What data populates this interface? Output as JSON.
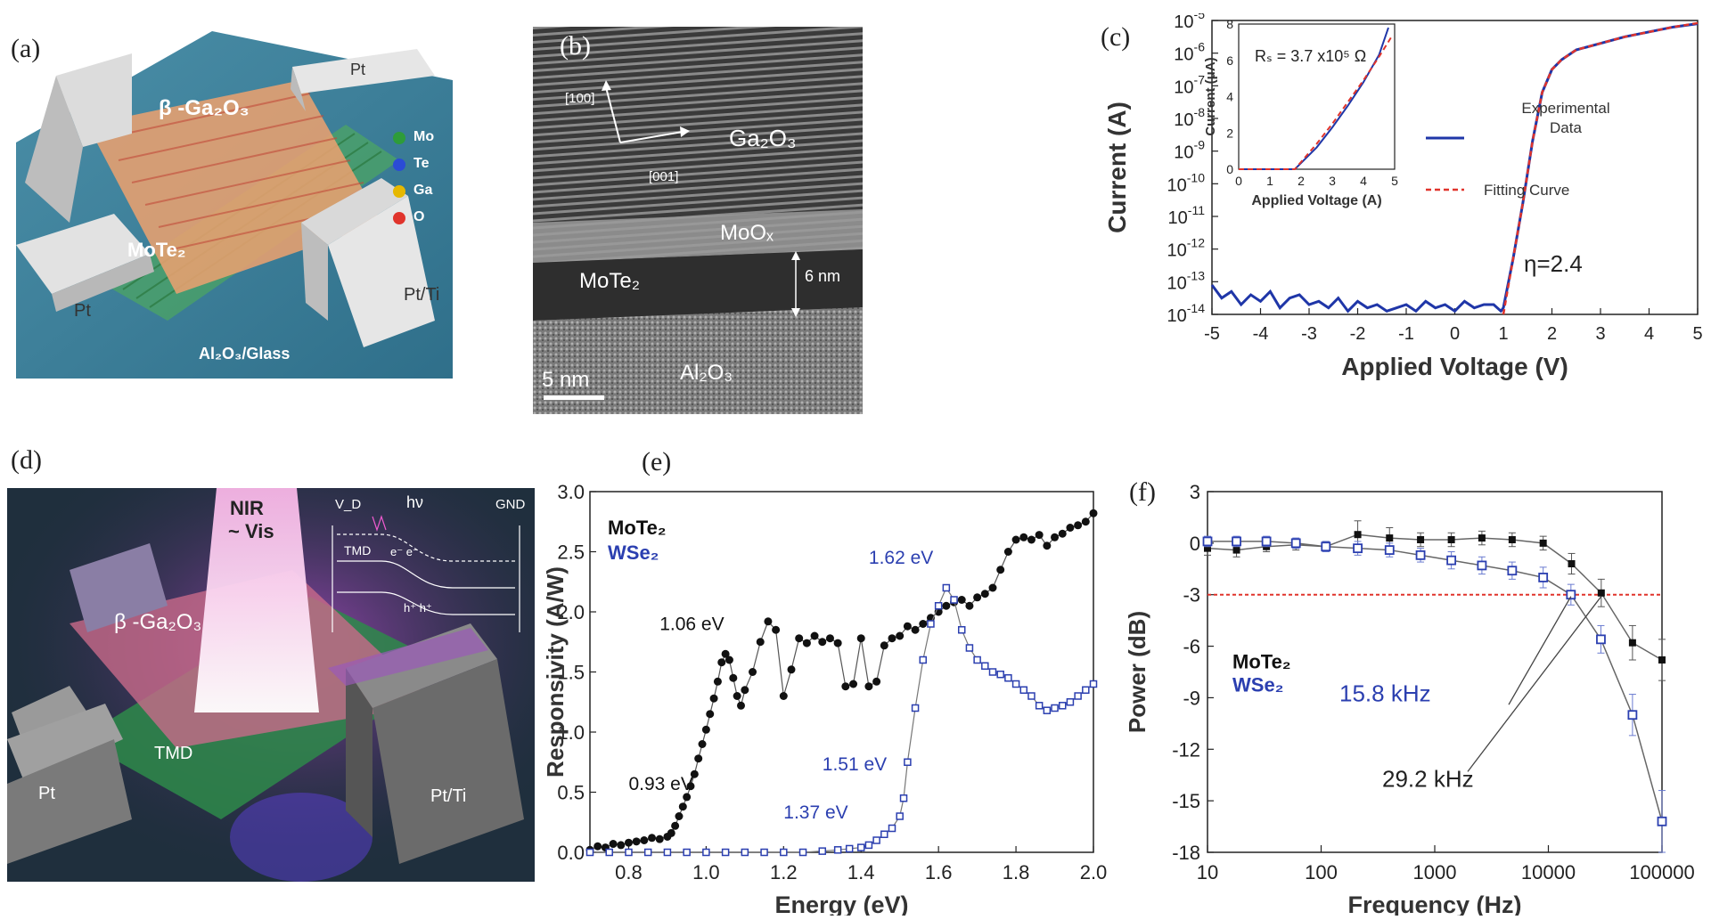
{
  "panels": {
    "a": {
      "label": "(a)",
      "layers": {
        "top": "β -Ga₂O₃",
        "middle": "MoTe₂",
        "substrate": "Al₂O₃/Glass"
      },
      "electrodes": [
        "Pt",
        "Pt",
        "Pt/Ti"
      ],
      "legend": [
        {
          "name": "Mo",
          "color": "#2e9c3a"
        },
        {
          "name": "Te",
          "color": "#2b4bd6"
        },
        {
          "name": "Ga",
          "color": "#e6b800"
        },
        {
          "name": "O",
          "color": "#e0342c"
        }
      ]
    },
    "b": {
      "label": "(b)",
      "dir1": "[100]",
      "dir2": "[001]",
      "layers": [
        "Ga₂O₃",
        "MoOₓ",
        "MoTe₂",
        "Al₂O₃"
      ],
      "thickness": "6 nm",
      "scalebar": "5 nm"
    },
    "c": {
      "label": "(c)",
      "xlabel": "Applied Voltage (V)",
      "ylabel": "Current (A)",
      "eta": "η=2.4",
      "legend": {
        "exp1": "Experimental",
        "exp2": "Data",
        "fit": "Fitting Curve"
      },
      "inset": {
        "xlabel": "Applied Voltage (A)",
        "ylabel": "Current (μA)",
        "rs": "Rₛ = 3.7 x10⁵ Ω",
        "xticks": [
          "0",
          "1",
          "2",
          "3",
          "4",
          "5"
        ],
        "yticks": [
          "0",
          "2",
          "4",
          "6",
          "8"
        ]
      }
    },
    "d": {
      "label": "(d)",
      "beam1": "NIR",
      "beam2": "~ Vis",
      "top": "β -Ga₂O₃",
      "bottom": "TMD",
      "electrodes": [
        "Pt",
        "Pt/Ti"
      ],
      "band": {
        "vd": "V_D",
        "hv": "hν",
        "gnd": "GND",
        "tmd": "TMD",
        "e": "e⁻ e⁻",
        "h": "h⁺ h⁺"
      }
    },
    "e": {
      "label": "(e)",
      "xlabel": "Energy (eV)",
      "ylabel": "Responsivity (A/W)",
      "legend": [
        "MoTe₂",
        "WSe₂"
      ],
      "annotations": [
        "0.93 eV",
        "1.06 eV",
        "1.37 eV",
        "1.51 eV",
        "1.62 eV"
      ]
    },
    "f": {
      "label": "(f)",
      "xlabel": "Frequency (Hz)",
      "ylabel": "Power (dB)",
      "legend": [
        "MoTe₂",
        "WSe₂"
      ],
      "annotations": [
        "15.8 kHz",
        "29.2 kHz"
      ]
    }
  },
  "chart_data": [
    {
      "id": "c",
      "type": "line",
      "title": "",
      "xlabel": "Applied Voltage (V)",
      "ylabel": "Current (A)",
      "xlim": [
        -5,
        5
      ],
      "ylim_log10": [
        -14,
        -5
      ],
      "xticks": [
        "-5",
        "-4",
        "-3",
        "-2",
        "-1",
        "0",
        "1",
        "2",
        "3",
        "4",
        "5"
      ],
      "yticks_exp": [
        "-14",
        "-13",
        "-12",
        "-11",
        "-10",
        "-9",
        "-8",
        "-7",
        "-6",
        "-5"
      ],
      "series": [
        {
          "name": "Experimental Data",
          "color": "#1f36a8",
          "x": [
            -5,
            -4.8,
            -4.6,
            -4.4,
            -4.2,
            -4,
            -3.8,
            -3.6,
            -3.4,
            -3.2,
            -3,
            -2.8,
            -2.6,
            -2.4,
            -2.2,
            -2,
            -1.8,
            -1.6,
            -1.4,
            -1.2,
            -1,
            -0.8,
            -0.6,
            -0.4,
            -0.2,
            0,
            0.2,
            0.4,
            0.6,
            0.8,
            0.95,
            1.0,
            1.2,
            1.4,
            1.6,
            1.8,
            2.0,
            2.2,
            2.5,
            3,
            3.5,
            4,
            4.5,
            5
          ],
          "log10y": [
            -13.1,
            -13.5,
            -13.3,
            -13.7,
            -13.4,
            -13.6,
            -13.3,
            -13.8,
            -13.5,
            -13.4,
            -13.7,
            -13.6,
            -13.8,
            -13.5,
            -13.9,
            -13.6,
            -13.8,
            -13.7,
            -13.9,
            -13.8,
            -13.7,
            -13.9,
            -13.6,
            -13.8,
            -13.7,
            -13.9,
            -13.6,
            -13.8,
            -13.7,
            -13.7,
            -13.9,
            -13.8,
            -12.3,
            -10.6,
            -8.7,
            -7.2,
            -6.5,
            -6.2,
            -5.9,
            -5.7,
            -5.5,
            -5.35,
            -5.2,
            -5.1
          ]
        },
        {
          "name": "Fitting Curve",
          "color": "#e0342c",
          "x": [
            1.0,
            1.2,
            1.4,
            1.6,
            1.8,
            2.0,
            2.2,
            2.5,
            3,
            3.5,
            4,
            4.5,
            5
          ],
          "log10y": [
            -14,
            -12.3,
            -10.6,
            -8.7,
            -7.2,
            -6.5,
            -6.2,
            -5.9,
            -5.7,
            -5.5,
            -5.35,
            -5.2,
            -5.08
          ]
        }
      ]
    },
    {
      "id": "c-inset",
      "type": "line",
      "xlabel": "Applied Voltage (A)",
      "ylabel": "Current (μA)",
      "xlim": [
        0,
        5
      ],
      "ylim": [
        0,
        8
      ],
      "series": [
        {
          "name": "Experimental Data",
          "color": "#1f36a8",
          "x": [
            0,
            1.8,
            2.5,
            3,
            3.5,
            4,
            4.5,
            4.8
          ],
          "y": [
            0,
            0,
            1.2,
            2.3,
            3.5,
            4.8,
            6.3,
            7.8
          ]
        },
        {
          "name": "Fitting Curve",
          "color": "#e0342c",
          "x": [
            0,
            1.8,
            2.5,
            3,
            3.5,
            4,
            4.5,
            4.9
          ],
          "y": [
            0,
            0,
            1.4,
            2.5,
            3.7,
            4.9,
            6.2,
            7.3
          ]
        }
      ]
    },
    {
      "id": "e",
      "type": "scatter",
      "xlabel": "Energy (eV)",
      "ylabel": "Responsivity (A/W)",
      "xlim": [
        0.7,
        2.0
      ],
      "ylim": [
        0,
        3.0
      ],
      "xticks": [
        "0.8",
        "1.0",
        "1.2",
        "1.4",
        "1.6",
        "1.8",
        "2.0"
      ],
      "yticks": [
        "0.0",
        "0.5",
        "1.0",
        "1.5",
        "2.0",
        "2.5",
        "3.0"
      ],
      "series": [
        {
          "name": "MoTe₂",
          "color": "#111111",
          "x": [
            0.7,
            0.72,
            0.74,
            0.76,
            0.78,
            0.8,
            0.82,
            0.84,
            0.86,
            0.88,
            0.9,
            0.91,
            0.92,
            0.93,
            0.94,
            0.95,
            0.96,
            0.97,
            0.98,
            0.99,
            1.0,
            1.01,
            1.02,
            1.03,
            1.04,
            1.05,
            1.06,
            1.07,
            1.08,
            1.09,
            1.1,
            1.12,
            1.14,
            1.16,
            1.18,
            1.2,
            1.22,
            1.24,
            1.26,
            1.28,
            1.3,
            1.32,
            1.34,
            1.36,
            1.38,
            1.4,
            1.42,
            1.44,
            1.46,
            1.48,
            1.5,
            1.52,
            1.54,
            1.56,
            1.58,
            1.6,
            1.62,
            1.64,
            1.66,
            1.68,
            1.7,
            1.72,
            1.74,
            1.76,
            1.78,
            1.8,
            1.82,
            1.84,
            1.86,
            1.88,
            1.9,
            1.92,
            1.94,
            1.96,
            1.98,
            2.0
          ],
          "y": [
            0.02,
            0.05,
            0.04,
            0.07,
            0.06,
            0.08,
            0.09,
            0.1,
            0.12,
            0.11,
            0.13,
            0.16,
            0.22,
            0.3,
            0.38,
            0.46,
            0.55,
            0.65,
            0.78,
            0.9,
            1.02,
            1.15,
            1.28,
            1.42,
            1.58,
            1.65,
            1.6,
            1.45,
            1.3,
            1.22,
            1.35,
            1.5,
            1.75,
            1.92,
            1.85,
            1.3,
            1.52,
            1.78,
            1.74,
            1.8,
            1.75,
            1.78,
            1.74,
            1.38,
            1.4,
            1.78,
            1.38,
            1.42,
            1.72,
            1.78,
            1.8,
            1.88,
            1.85,
            1.9,
            1.95,
            2.0,
            2.05,
            2.08,
            2.1,
            2.05,
            2.12,
            2.15,
            2.2,
            2.35,
            2.5,
            2.6,
            2.62,
            2.6,
            2.64,
            2.55,
            2.62,
            2.65,
            2.7,
            2.72,
            2.75,
            2.82
          ]
        },
        {
          "name": "WSe₂",
          "color": "#2b3fb0",
          "x": [
            0.7,
            0.75,
            0.8,
            0.85,
            0.9,
            0.95,
            1.0,
            1.05,
            1.1,
            1.15,
            1.2,
            1.25,
            1.3,
            1.34,
            1.37,
            1.4,
            1.42,
            1.44,
            1.46,
            1.48,
            1.5,
            1.51,
            1.52,
            1.54,
            1.56,
            1.58,
            1.6,
            1.62,
            1.64,
            1.66,
            1.68,
            1.7,
            1.72,
            1.74,
            1.76,
            1.78,
            1.8,
            1.82,
            1.84,
            1.86,
            1.88,
            1.9,
            1.92,
            1.94,
            1.96,
            1.98,
            2.0
          ],
          "y": [
            0,
            0,
            0,
            0,
            0,
            0,
            0,
            0,
            0,
            0,
            0,
            0,
            0.01,
            0.02,
            0.03,
            0.04,
            0.06,
            0.1,
            0.15,
            0.2,
            0.3,
            0.45,
            0.75,
            1.2,
            1.6,
            1.9,
            2.05,
            2.2,
            2.1,
            1.85,
            1.7,
            1.6,
            1.55,
            1.5,
            1.48,
            1.45,
            1.4,
            1.35,
            1.3,
            1.22,
            1.18,
            1.2,
            1.22,
            1.25,
            1.3,
            1.35,
            1.4
          ]
        }
      ]
    },
    {
      "id": "f",
      "type": "line",
      "xlabel": "Frequency (Hz)",
      "ylabel": "Power (dB)",
      "xscale": "log",
      "xlim": [
        10,
        100000
      ],
      "ylim": [
        -18,
        3
      ],
      "xticks": [
        "10",
        "100",
        "1000",
        "10000",
        "100000"
      ],
      "yticks": [
        "3",
        "0",
        "-3",
        "-6",
        "-9",
        "-12",
        "-15",
        "-18"
      ],
      "reference_dB": -3,
      "series": [
        {
          "name": "MoTe₂",
          "color": "#111111",
          "x": [
            10,
            18,
            33,
            60,
            110,
            210,
            400,
            750,
            1400,
            2600,
            4800,
            9000,
            16000,
            29200,
            55000,
            100000
          ],
          "y": [
            -0.3,
            -0.4,
            -0.2,
            -0.1,
            -0.2,
            0.5,
            0.3,
            0.2,
            0.2,
            0.3,
            0.2,
            0.0,
            -1.2,
            -2.9,
            -5.8,
            -6.8
          ],
          "err": [
            0.4,
            0.4,
            0.3,
            0.3,
            0.3,
            0.8,
            0.6,
            0.4,
            0.4,
            0.4,
            0.4,
            0.4,
            0.6,
            0.8,
            1.0,
            1.2
          ]
        },
        {
          "name": "WSe₂",
          "color": "#2b3fb0",
          "x": [
            10,
            18,
            33,
            60,
            110,
            210,
            400,
            750,
            1400,
            2600,
            4800,
            9000,
            15800,
            29000,
            55000,
            100000
          ],
          "y": [
            0.1,
            0.1,
            0.1,
            0.0,
            -0.2,
            -0.3,
            -0.4,
            -0.7,
            -1.0,
            -1.3,
            -1.6,
            -2.0,
            -3.0,
            -5.6,
            -10.0,
            -16.2
          ],
          "err": [
            0.3,
            0.3,
            0.3,
            0.3,
            0.3,
            0.4,
            0.4,
            0.4,
            0.5,
            0.5,
            0.5,
            0.6,
            0.6,
            0.8,
            1.2,
            1.8
          ]
        }
      ]
    }
  ]
}
